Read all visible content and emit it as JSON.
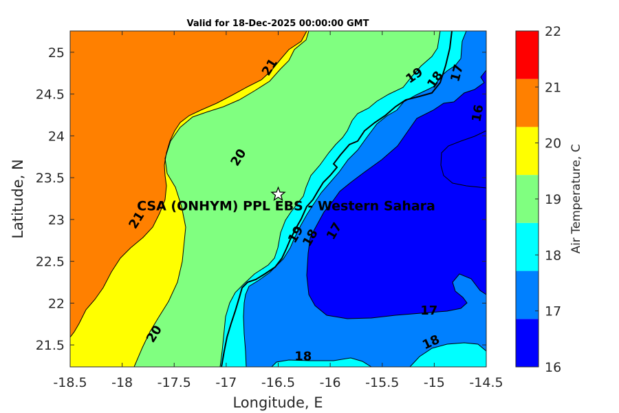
{
  "title": "Valid for 18-Dec-2025 00:00:00 GMT",
  "xlabel": "Longitude, E",
  "ylabel": "Latitude, N",
  "colorbar_label": "Air Temperature, C",
  "site_label": "CSA (ONHYM) PPL EBS - Western Sahara",
  "site_lon": -16.5,
  "site_lat": 23.3,
  "x_ticks": [
    "-18.5",
    "-18",
    "-17.5",
    "-17",
    "-16.5",
    "-16",
    "-15.5",
    "-15",
    "-14.5"
  ],
  "y_ticks": [
    "21.5",
    "22",
    "22.5",
    "23",
    "23.5",
    "24",
    "24.5",
    "25"
  ],
  "colorbar_ticks": [
    "16",
    "17",
    "18",
    "19",
    "20",
    "21",
    "22"
  ],
  "colorbar_colors": [
    "#0000ff",
    "#0080ff",
    "#00ffff",
    "#80ff80",
    "#ffff00",
    "#ff8000",
    "#ff0000"
  ],
  "zone_colors": {
    "orange": "#ff8000",
    "yellow": "#ffff00",
    "green": "#80ff80",
    "cyan": "#00ffff",
    "light_blue": "#0080ff",
    "blue": "#0000ff"
  },
  "contour_labels": [
    {
      "text": "21",
      "lon": -16.58,
      "lat": 24.82,
      "rot": -58
    },
    {
      "text": "20",
      "lon": -16.88,
      "lat": 23.74,
      "rot": -58
    },
    {
      "text": "21",
      "lon": -17.86,
      "lat": 22.99,
      "rot": -58
    },
    {
      "text": "20",
      "lon": -17.69,
      "lat": 21.63,
      "rot": -58
    },
    {
      "text": "19",
      "lon": -15.19,
      "lat": 24.72,
      "rot": -35
    },
    {
      "text": "18",
      "lon": -14.99,
      "lat": 24.67,
      "rot": -55
    },
    {
      "text": "17",
      "lon": -14.78,
      "lat": 24.75,
      "rot": -75
    },
    {
      "text": "16",
      "lon": -14.58,
      "lat": 24.27,
      "rot": -80
    },
    {
      "text": "19",
      "lon": -16.33,
      "lat": 22.82,
      "rot": -60
    },
    {
      "text": "18",
      "lon": -16.19,
      "lat": 22.78,
      "rot": -60
    },
    {
      "text": "17",
      "lon": -15.96,
      "lat": 22.86,
      "rot": -60
    },
    {
      "text": "17",
      "lon": -15.05,
      "lat": 21.91,
      "rot": 0
    },
    {
      "text": "18",
      "lon": -15.03,
      "lat": 21.53,
      "rot": -25
    },
    {
      "text": "18",
      "lon": -16.26,
      "lat": 21.36,
      "rot": 0
    }
  ]
}
